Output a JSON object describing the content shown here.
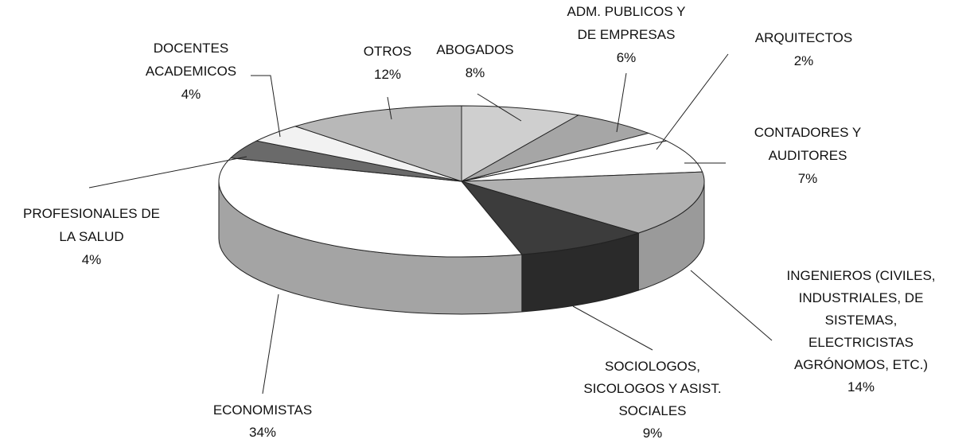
{
  "chart_data": {
    "type": "pie3d",
    "categories": [
      "ABOGADOS",
      "ADM. PUBLICOS Y\nDE EMPRESAS",
      "ARQUITECTOS",
      "CONTADORES Y\nAUDITORES",
      "INGENIEROS (CIVILES,\nINDUSTRIALES, DE\nSISTEMAS,\nELECTRICISTAS\nAGRÓNOMOS, ETC.)",
      "SOCIOLOGOS,\nSICOLOGOS Y ASIST.\nSOCIALES",
      "ECONOMISTAS",
      "PROFESIONALES DE\nLA SALUD",
      "DOCENTES\nACADEMICOS",
      "OTROS"
    ],
    "values": [
      8,
      6,
      2,
      7,
      14,
      9,
      34,
      4,
      4,
      12
    ],
    "value_labels": [
      "8%",
      "6%",
      "2%",
      "7%",
      "14%",
      "9%",
      "34%",
      "4%",
      "4%",
      "12%"
    ],
    "colors": [
      "#cfcfcf",
      "#a6a6a6",
      "#ffffff",
      "#ffffff",
      "#b0b0b0",
      "#3c3c3c",
      "#ffffff",
      "#6a6a6a",
      "#f2f2f2",
      "#b8b8b8"
    ],
    "side_colors": [
      "#a8a8a8",
      "#8a8a8a",
      "#cfcfcf",
      "#cfcfcf",
      "#9a9a9a",
      "#2a2a2a",
      "#a4a4a4",
      "#505050",
      "#cccccc",
      "#999999"
    ]
  }
}
